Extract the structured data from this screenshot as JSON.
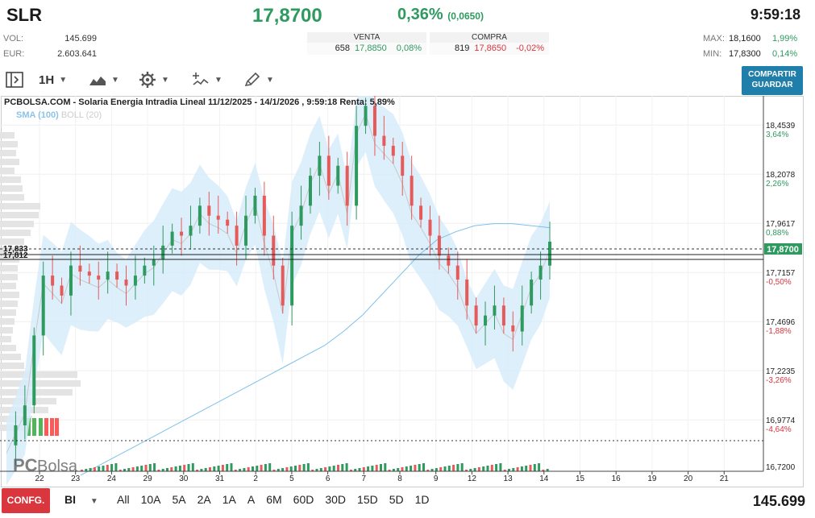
{
  "header": {
    "ticker": "SLR",
    "price": "17,8700",
    "change_pct": "0,36%",
    "change_abs": "(0,0650)",
    "time": "9:59:18"
  },
  "stats": {
    "vol_label": "VOL:",
    "vol_value": "145.699",
    "eur_label": "EUR:",
    "eur_value": "2.603.641"
  },
  "orderbook": {
    "venta_label": "VENTA",
    "venta_qty": "658",
    "venta_price": "17,8850",
    "venta_pct": "0,08%",
    "compra_label": "COMPRA",
    "compra_qty": "819",
    "compra_price": "17,8650",
    "compra_pct": "-0,02%"
  },
  "range_stats": {
    "max_label": "MAX:",
    "max_value": "18,1600",
    "max_pct": "1,99%",
    "min_label": "MIN:",
    "min_value": "17,8300",
    "min_pct": "0,14%"
  },
  "toolbar": {
    "interval": "1H",
    "share_label_1": "COMPARTIR",
    "share_label_2": "GUARDAR"
  },
  "chart": {
    "title": "PCBOLSA.COM - Solaria Energia Intradia Lineal 11/12/2025 - 14/1/2026 , 9:59:18 Renta: 5,89%",
    "sma_label": "SMA (100)",
    "boll_label": "BOLL (20)",
    "watermark_pc": "PC",
    "watermark_bolsa": "Bolsa",
    "current_price_tag": "17,8700",
    "left_tag_1": "17,833",
    "left_tag_2": "17,812",
    "accent_green": "#2e9a5f",
    "accent_red": "#d9363e",
    "band_color": "#d6ecfa"
  },
  "chart_data": {
    "type": "line",
    "title": "PCBOLSA.COM - Solaria Energia Intradia Lineal 11/12/2025 - 14/1/2026",
    "y_ticks": [
      {
        "value": 18.4539,
        "label": "18,4539",
        "pct": "3,64%",
        "sign": "pos"
      },
      {
        "value": 18.2078,
        "label": "18,2078",
        "pct": "2,26%",
        "sign": "pos"
      },
      {
        "value": 17.9617,
        "label": "17,9617",
        "pct": "0,88%",
        "sign": "pos"
      },
      {
        "value": 17.7157,
        "label": "17,7157",
        "pct": "-0,50%",
        "sign": "neg"
      },
      {
        "value": 17.4696,
        "label": "17,4696",
        "pct": "-1,88%",
        "sign": "neg"
      },
      {
        "value": 17.2235,
        "label": "17,2235",
        "pct": "-3,26%",
        "sign": "neg"
      },
      {
        "value": 16.9774,
        "label": "16,9774",
        "pct": "-4,64%",
        "sign": "neg"
      },
      {
        "value": 16.72,
        "label": "16,7200",
        "pct": "",
        "sign": "none"
      }
    ],
    "x_ticks": [
      "22",
      "23",
      "24",
      "29",
      "30",
      "31",
      "2",
      "5",
      "6",
      "7",
      "8",
      "9",
      "12",
      "13",
      "14",
      "15",
      "16",
      "19",
      "20",
      "21"
    ],
    "ylim": [
      16.72,
      18.6
    ],
    "series": [
      {
        "name": "price",
        "values": [
          16.85,
          16.95,
          17.05,
          17.4,
          17.7,
          17.65,
          17.6,
          17.75,
          17.72,
          17.7,
          17.68,
          17.72,
          17.68,
          17.65,
          17.7,
          17.75,
          17.78,
          17.85,
          17.92,
          17.9,
          17.95,
          18.05,
          18.0,
          17.98,
          17.95,
          17.85,
          18.0,
          18.1,
          17.9,
          17.75,
          17.55,
          17.95,
          18.05,
          18.2,
          18.3,
          18.15,
          18.25,
          18.05,
          18.45,
          18.55,
          18.4,
          18.35,
          18.3,
          18.2,
          18.05,
          17.98,
          17.9,
          17.8,
          17.75,
          17.68,
          17.55,
          17.45,
          17.5,
          17.55,
          17.45,
          17.42,
          17.55,
          17.68,
          17.75,
          17.87
        ]
      },
      {
        "name": "SMA (100)",
        "values": [
          16.7,
          16.75,
          16.8,
          16.85,
          16.9,
          16.95,
          17.0,
          17.05,
          17.1,
          17.15,
          17.2,
          17.25,
          17.3,
          17.35,
          17.42,
          17.5,
          17.6,
          17.7,
          17.8,
          17.88,
          17.92,
          17.95,
          17.96,
          17.96,
          17.95,
          17.94
        ]
      }
    ]
  },
  "footer": {
    "config_label": "CONFG.",
    "mode_label": "BI",
    "ranges": [
      "All",
      "10A",
      "5A",
      "2A",
      "1A",
      "A",
      "6M",
      "60D",
      "30D",
      "15D",
      "5D",
      "1D"
    ],
    "volume_total": "145.699"
  }
}
